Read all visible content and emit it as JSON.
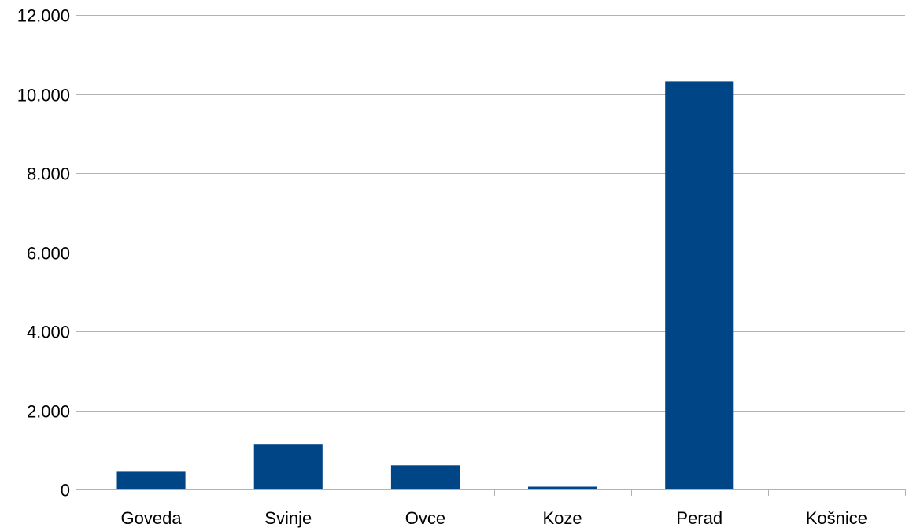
{
  "chart_data": {
    "type": "bar",
    "title": "",
    "xlabel": "",
    "ylabel": "",
    "categories": [
      "Goveda",
      "Svinje",
      "Ovce",
      "Koze",
      "Perad",
      "Košnice"
    ],
    "values": [
      450,
      1150,
      610,
      70,
      10320,
      0
    ],
    "ylim": [
      0,
      12000
    ],
    "yticks": [
      0,
      2000,
      4000,
      6000,
      8000,
      10000,
      12000
    ],
    "ytick_labels": [
      "0",
      "2.000",
      "4.000",
      "6.000",
      "8.000",
      "10.000",
      "12.000"
    ],
    "grid": "horizontal",
    "legend": "none",
    "colors": {
      "bar": "#004586",
      "grid": "#b3b3b3",
      "axis": "#b3b3b3"
    }
  }
}
